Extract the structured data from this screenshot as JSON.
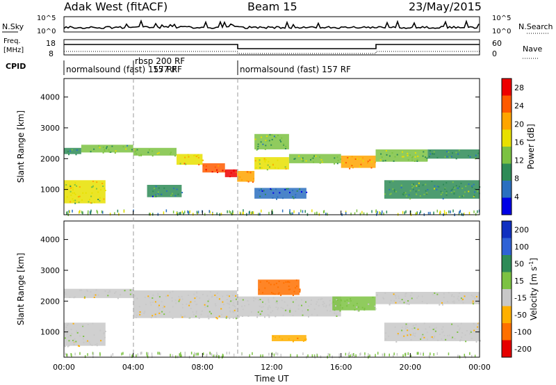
{
  "header": {
    "station": "Adak West (fitACF)",
    "beam": "Beam 15",
    "date": "23/May/2015"
  },
  "top_panels": {
    "nsky_label": "N.Sky",
    "nsearch_label": "N.Search",
    "count_ticks_left": [
      "10^5",
      "10^0"
    ],
    "count_ticks_right": [
      "10^5",
      "10^0"
    ],
    "freq_label_line1": "Freq.",
    "freq_label_line2": "[MHz]",
    "freq_ticks": [
      "18",
      "8"
    ],
    "nave_label": "Nave",
    "nave_ticks": [
      "60",
      "0"
    ],
    "cpid_label": "CPID",
    "cpid_segments": [
      {
        "name": "normalsound (fast) 157 RF",
        "start_hour": 0
      },
      {
        "name": "rbsp 200 RF",
        "start_hour": 4
      },
      {
        "name": "157 RF",
        "start_hour": 4
      },
      {
        "name": "normalsound (fast) 157 RF",
        "start_hour": 10
      }
    ]
  },
  "chart_data": [
    {
      "type": "heatmap",
      "title": "",
      "xlabel": "Time UT",
      "ylabel": "Slant Range [km]",
      "xlim": [
        0,
        24
      ],
      "ylim": [
        180,
        4600
      ],
      "x_ticks": [
        "00:00",
        "04:00",
        "08:00",
        "12:00",
        "16:00",
        "20:00",
        "00:00"
      ],
      "y_ticks": [
        1000,
        2000,
        3000,
        4000
      ],
      "colorbar": {
        "label": "Power [dB]",
        "ticks": [
          4,
          8,
          12,
          16,
          20,
          24,
          28
        ],
        "range": [
          0,
          30
        ],
        "colors": [
          "#0000e6",
          "#2a6fc0",
          "#2e8b57",
          "#7cc242",
          "#e8e000",
          "#ffa500",
          "#ff5a00",
          "#ee0000"
        ]
      },
      "echo_bands": [
        {
          "t0": 0.0,
          "t1": 1.0,
          "r0": 2150,
          "r1": 2350,
          "value": 9
        },
        {
          "t0": 1.0,
          "t1": 4.0,
          "r0": 2200,
          "r1": 2450,
          "value": 12
        },
        {
          "t0": 4.0,
          "t1": 6.5,
          "r0": 2100,
          "r1": 2350,
          "value": 14
        },
        {
          "t0": 6.5,
          "t1": 8.0,
          "r0": 1800,
          "r1": 2150,
          "value": 18
        },
        {
          "t0": 8.0,
          "t1": 9.3,
          "r0": 1550,
          "r1": 1850,
          "value": 26
        },
        {
          "t0": 9.3,
          "t1": 10.0,
          "r0": 1400,
          "r1": 1650,
          "value": 30
        },
        {
          "t0": 10.0,
          "t1": 11.0,
          "r0": 1250,
          "r1": 1600,
          "value": 22
        },
        {
          "t0": 11.0,
          "t1": 13.0,
          "r0": 1650,
          "r1": 2050,
          "value": 16
        },
        {
          "t0": 13.0,
          "t1": 16.0,
          "r0": 1850,
          "r1": 2150,
          "value": 13
        },
        {
          "t0": 16.0,
          "t1": 18.0,
          "r0": 1700,
          "r1": 2100,
          "value": 20
        },
        {
          "t0": 18.0,
          "t1": 21.0,
          "r0": 1900,
          "r1": 2300,
          "value": 12
        },
        {
          "t0": 21.0,
          "t1": 24.0,
          "r0": 2000,
          "r1": 2300,
          "value": 9
        },
        {
          "t0": 0.0,
          "t1": 2.4,
          "r0": 550,
          "r1": 1300,
          "value": 16
        },
        {
          "t0": 4.8,
          "t1": 6.8,
          "r0": 750,
          "r1": 1150,
          "value": 8
        },
        {
          "t0": 11.0,
          "t1": 14.0,
          "r0": 700,
          "r1": 1050,
          "value": 6
        },
        {
          "t0": 11.0,
          "t1": 13.0,
          "r0": 2300,
          "r1": 2800,
          "value": 12
        },
        {
          "t0": 18.5,
          "t1": 24.0,
          "r0": 700,
          "r1": 1300,
          "value": 11
        }
      ]
    },
    {
      "type": "heatmap",
      "title": "",
      "xlabel": "Time UT",
      "ylabel": "Slant Range [km]",
      "xlim": [
        0,
        24
      ],
      "ylim": [
        180,
        4600
      ],
      "x_ticks": [
        "00:00",
        "04:00",
        "08:00",
        "12:00",
        "16:00",
        "20:00",
        "00:00"
      ],
      "y_ticks": [
        1000,
        2000,
        3000,
        4000
      ],
      "colorbar": {
        "label": "Velocity [m s^-1]",
        "ticks": [
          200,
          100,
          50,
          15,
          -15,
          -50,
          -100,
          -200
        ],
        "colors": [
          "#1030c0",
          "#2f62d6",
          "#2e8b57",
          "#7cc242",
          "#c8c8c8",
          "#ffb000",
          "#ff7000",
          "#e60000"
        ]
      },
      "echo_bands": [
        {
          "t0": 0.0,
          "t1": 4.0,
          "r0": 2100,
          "r1": 2400,
          "value": 0
        },
        {
          "t0": 4.0,
          "t1": 10.0,
          "r0": 1450,
          "r1": 2350,
          "value": 0
        },
        {
          "t0": 10.0,
          "t1": 16.0,
          "r0": 1500,
          "r1": 2150,
          "value": 5
        },
        {
          "t0": 15.5,
          "t1": 18.0,
          "r0": 1700,
          "r1": 2150,
          "value": 25
        },
        {
          "t0": 18.0,
          "t1": 24.0,
          "r0": 1900,
          "r1": 2300,
          "value": 0
        },
        {
          "t0": 0.0,
          "t1": 2.4,
          "r0": 550,
          "r1": 1300,
          "value": 0
        },
        {
          "t0": 18.5,
          "t1": 24.0,
          "r0": 700,
          "r1": 1300,
          "value": 0
        },
        {
          "t0": 11.2,
          "t1": 13.6,
          "r0": 2200,
          "r1": 2700,
          "value": -80
        },
        {
          "t0": 12.0,
          "t1": 14.0,
          "r0": 700,
          "r1": 900,
          "value": -40
        }
      ]
    }
  ]
}
